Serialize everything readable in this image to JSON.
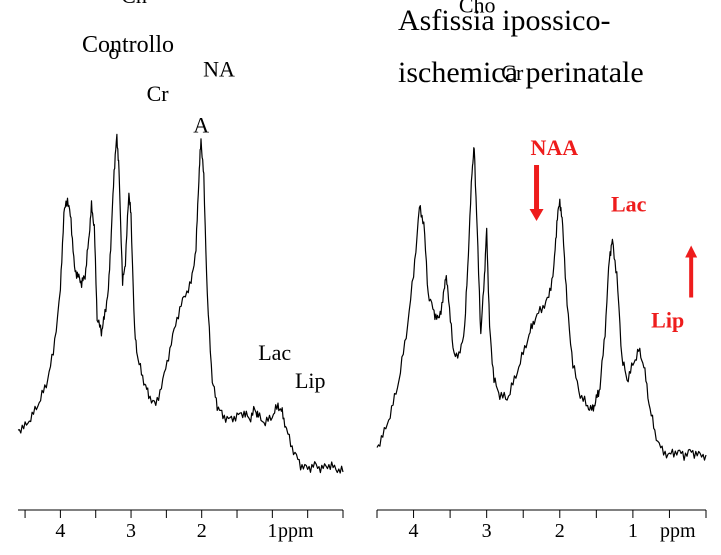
{
  "chart_data": [
    {
      "type": "line",
      "title": "Controllo",
      "xlabel": "ppm",
      "ylabel": "",
      "xlim": [
        4.6,
        0.0
      ],
      "ylim": [
        0,
        100
      ],
      "x_ticks": [
        4,
        3,
        2,
        1
      ],
      "x_tick_labels": [
        "4",
        "3",
        "2",
        "1"
      ],
      "grid": false,
      "series": [
        {
          "color": "#000000",
          "points": [
            [
              4.6,
              20
            ],
            [
              4.5,
              21
            ],
            [
              4.4,
              24
            ],
            [
              4.3,
              28
            ],
            [
              4.2,
              33
            ],
            [
              4.1,
              42
            ],
            [
              4.0,
              60
            ],
            [
              3.95,
              82
            ],
            [
              3.9,
              86
            ],
            [
              3.85,
              80
            ],
            [
              3.8,
              66
            ],
            [
              3.75,
              64
            ],
            [
              3.7,
              62
            ],
            [
              3.65,
              64
            ],
            [
              3.6,
              74
            ],
            [
              3.56,
              84
            ],
            [
              3.52,
              78
            ],
            [
              3.48,
              52
            ],
            [
              3.42,
              48
            ],
            [
              3.38,
              52
            ],
            [
              3.32,
              60
            ],
            [
              3.28,
              76
            ],
            [
              3.24,
              94
            ],
            [
              3.2,
              104
            ],
            [
              3.17,
              94
            ],
            [
              3.12,
              62
            ],
            [
              3.08,
              68
            ],
            [
              3.03,
              88
            ],
            [
              3.0,
              81
            ],
            [
              2.95,
              48
            ],
            [
              2.9,
              40
            ],
            [
              2.82,
              34
            ],
            [
              2.75,
              30
            ],
            [
              2.65,
              27
            ],
            [
              2.55,
              34
            ],
            [
              2.45,
              43
            ],
            [
              2.35,
              52
            ],
            [
              2.25,
              58
            ],
            [
              2.15,
              62
            ],
            [
              2.08,
              72
            ],
            [
              2.04,
              92
            ],
            [
              2.01,
              103
            ],
            [
              1.97,
              92
            ],
            [
              1.92,
              58
            ],
            [
              1.85,
              34
            ],
            [
              1.78,
              27
            ],
            [
              1.7,
              24
            ],
            [
              1.6,
              23
            ],
            [
              1.5,
              24
            ],
            [
              1.4,
              25
            ],
            [
              1.32,
              23
            ],
            [
              1.25,
              26
            ],
            [
              1.2,
              24
            ],
            [
              1.1,
              22
            ],
            [
              1.0,
              24
            ],
            [
              0.92,
              27
            ],
            [
              0.86,
              25
            ],
            [
              0.8,
              20
            ],
            [
              0.7,
              14
            ],
            [
              0.6,
              10
            ],
            [
              0.5,
              9
            ],
            [
              0.4,
              10
            ],
            [
              0.3,
              9
            ],
            [
              0.2,
              10
            ],
            [
              0.1,
              9
            ],
            [
              0.0,
              8
            ]
          ]
        }
      ],
      "annotations": [
        {
          "text": "Ch",
          "x": 3.14,
          "y": 142,
          "color": "#000000"
        },
        {
          "text": "o",
          "x": 3.32,
          "y": 126,
          "color": "#000000"
        },
        {
          "text": "Cr",
          "x": 2.78,
          "y": 114,
          "color": "#000000"
        },
        {
          "text": "NA",
          "x": 1.98,
          "y": 121,
          "color": "#000000"
        },
        {
          "text": "A",
          "x": 2.12,
          "y": 105,
          "color": "#000000"
        },
        {
          "text": "Lac",
          "x": 1.2,
          "y": 40,
          "color": "#000000"
        },
        {
          "text": "Lip",
          "x": 0.68,
          "y": 32,
          "color": "#000000"
        }
      ]
    },
    {
      "type": "line",
      "title": "Asfissia ipossico-ischemica perinatale",
      "title_lines": [
        "Asfissia ipossico-",
        "ischemica perinatale"
      ],
      "xlabel": "ppm",
      "ylabel": "",
      "xlim": [
        4.5,
        0.0
      ],
      "ylim": [
        0,
        100
      ],
      "x_ticks": [
        4,
        3,
        2,
        1
      ],
      "x_tick_labels": [
        "4",
        "3",
        "2",
        "1"
      ],
      "grid": false,
      "series": [
        {
          "color": "#000000",
          "points": [
            [
              4.5,
              14
            ],
            [
              4.4,
              18
            ],
            [
              4.3,
              24
            ],
            [
              4.2,
              32
            ],
            [
              4.1,
              44
            ],
            [
              4.0,
              60
            ],
            [
              3.92,
              78
            ],
            [
              3.86,
              74
            ],
            [
              3.8,
              55
            ],
            [
              3.72,
              50
            ],
            [
              3.66,
              48
            ],
            [
              3.6,
              53
            ],
            [
              3.56,
              60
            ],
            [
              3.52,
              54
            ],
            [
              3.46,
              40
            ],
            [
              3.38,
              38
            ],
            [
              3.3,
              46
            ],
            [
              3.25,
              66
            ],
            [
              3.2,
              88
            ],
            [
              3.17,
              94
            ],
            [
              3.13,
              72
            ],
            [
              3.08,
              44
            ],
            [
              3.03,
              60
            ],
            [
              3.0,
              72
            ],
            [
              2.96,
              46
            ],
            [
              2.9,
              32
            ],
            [
              2.82,
              28
            ],
            [
              2.72,
              27
            ],
            [
              2.62,
              32
            ],
            [
              2.52,
              38
            ],
            [
              2.42,
              44
            ],
            [
              2.35,
              48
            ],
            [
              2.25,
              51
            ],
            [
              2.15,
              54
            ],
            [
              2.08,
              62
            ],
            [
              2.04,
              74
            ],
            [
              2.0,
              80
            ],
            [
              1.96,
              73
            ],
            [
              1.9,
              52
            ],
            [
              1.82,
              36
            ],
            [
              1.72,
              28
            ],
            [
              1.62,
              25
            ],
            [
              1.55,
              24
            ],
            [
              1.5,
              27
            ],
            [
              1.45,
              30
            ],
            [
              1.38,
              45
            ],
            [
              1.32,
              65
            ],
            [
              1.28,
              69
            ],
            [
              1.22,
              60
            ],
            [
              1.15,
              38
            ],
            [
              1.08,
              32
            ],
            [
              1.0,
              36
            ],
            [
              0.92,
              40
            ],
            [
              0.85,
              36
            ],
            [
              0.78,
              26
            ],
            [
              0.7,
              18
            ],
            [
              0.6,
              13
            ],
            [
              0.5,
              12
            ],
            [
              0.4,
              13
            ],
            [
              0.3,
              12
            ],
            [
              0.2,
              13
            ],
            [
              0.1,
              12
            ],
            [
              0.0,
              12
            ]
          ]
        }
      ],
      "annotations": [
        {
          "text": "Cho",
          "x": 3.38,
          "y": 130,
          "color": "#000000"
        },
        {
          "text": "Cr",
          "x": 2.8,
          "y": 112,
          "color": "#000000"
        },
        {
          "text": "NAA",
          "x": 2.4,
          "y": 92,
          "color": "#ee1c1c",
          "bold": true
        },
        {
          "text": "Lac",
          "x": 1.3,
          "y": 77,
          "color": "#ee1c1c",
          "bold": true
        },
        {
          "text": "Lip",
          "x": 0.75,
          "y": 46,
          "color": "#ee1c1c",
          "bold": true
        }
      ],
      "arrows": [
        {
          "direction": "down",
          "color": "#ee1c1c",
          "near": "NAA"
        },
        {
          "direction": "up",
          "color": "#ee1c1c",
          "near": "Lip"
        }
      ]
    }
  ]
}
